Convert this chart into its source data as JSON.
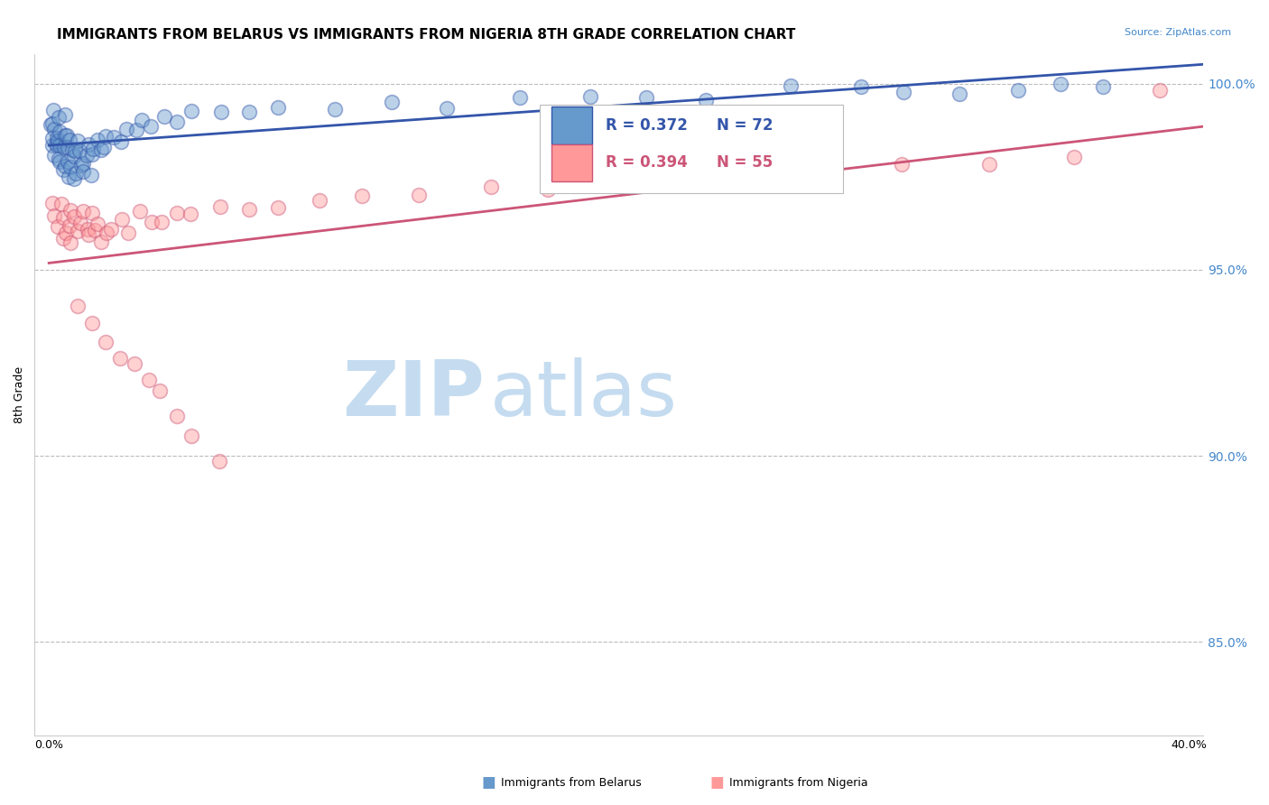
{
  "title": "IMMIGRANTS FROM BELARUS VS IMMIGRANTS FROM NIGERIA 8TH GRADE CORRELATION CHART",
  "source": "Source: ZipAtlas.com",
  "xlabel_bottom": "Immigrants from Belarus",
  "xlabel_bottom2": "Immigrants from Nigeria",
  "ylabel": "8th Grade",
  "xlim": [
    -0.005,
    0.405
  ],
  "ylim": [
    0.825,
    1.008
  ],
  "yticks": [
    0.85,
    0.9,
    0.95,
    1.0
  ],
  "yticklabels": [
    "85.0%",
    "90.0%",
    "95.0%",
    "100.0%"
  ],
  "legend_r_belarus": "R = 0.372",
  "legend_n_belarus": "N = 72",
  "legend_r_nigeria": "R = 0.394",
  "legend_n_nigeria": "N = 55",
  "color_belarus": "#6699CC",
  "color_nigeria": "#FF9999",
  "color_line_belarus": "#3355AA",
  "color_line_nigeria": "#CC5577",
  "tick_color": "#4488CC",
  "watermark_zip": "ZIP",
  "watermark_atlas": "atlas",
  "watermark_color": "#C5DCF0",
  "title_fontsize": 11,
  "axis_label_fontsize": 9,
  "tick_fontsize": 9,
  "belarus_x": [
    0.001,
    0.001,
    0.001,
    0.002,
    0.002,
    0.002,
    0.002,
    0.002,
    0.003,
    0.003,
    0.003,
    0.003,
    0.003,
    0.004,
    0.004,
    0.004,
    0.005,
    0.005,
    0.005,
    0.005,
    0.006,
    0.006,
    0.006,
    0.007,
    0.007,
    0.007,
    0.008,
    0.008,
    0.009,
    0.009,
    0.01,
    0.01,
    0.01,
    0.011,
    0.011,
    0.012,
    0.012,
    0.013,
    0.014,
    0.015,
    0.015,
    0.016,
    0.017,
    0.018,
    0.019,
    0.02,
    0.022,
    0.025,
    0.027,
    0.03,
    0.033,
    0.036,
    0.04,
    0.045,
    0.05,
    0.06,
    0.07,
    0.08,
    0.1,
    0.12,
    0.14,
    0.165,
    0.19,
    0.21,
    0.23,
    0.26,
    0.285,
    0.3,
    0.32,
    0.34,
    0.355,
    0.37
  ],
  "belarus_y": [
    0.988,
    0.99,
    0.985,
    0.992,
    0.988,
    0.984,
    0.986,
    0.982,
    0.99,
    0.986,
    0.982,
    0.984,
    0.98,
    0.988,
    0.984,
    0.98,
    0.99,
    0.986,
    0.982,
    0.978,
    0.986,
    0.982,
    0.978,
    0.984,
    0.98,
    0.976,
    0.982,
    0.978,
    0.98,
    0.976,
    0.984,
    0.98,
    0.976,
    0.982,
    0.978,
    0.98,
    0.976,
    0.982,
    0.984,
    0.98,
    0.976,
    0.982,
    0.984,
    0.982,
    0.984,
    0.986,
    0.984,
    0.986,
    0.988,
    0.988,
    0.99,
    0.988,
    0.99,
    0.99,
    0.992,
    0.992,
    0.992,
    0.994,
    0.994,
    0.996,
    0.994,
    0.996,
    0.996,
    0.996,
    0.996,
    0.998,
    0.998,
    0.998,
    0.998,
    0.998,
    0.999,
    0.999
  ],
  "nigeria_x": [
    0.001,
    0.002,
    0.003,
    0.004,
    0.005,
    0.005,
    0.006,
    0.007,
    0.008,
    0.008,
    0.009,
    0.01,
    0.011,
    0.012,
    0.013,
    0.014,
    0.015,
    0.016,
    0.017,
    0.018,
    0.02,
    0.022,
    0.025,
    0.028,
    0.032,
    0.036,
    0.04,
    0.045,
    0.05,
    0.06,
    0.07,
    0.08,
    0.095,
    0.11,
    0.13,
    0.155,
    0.175,
    0.2,
    0.225,
    0.25,
    0.275,
    0.3,
    0.33,
    0.36,
    0.39,
    0.01,
    0.015,
    0.02,
    0.025,
    0.03,
    0.035,
    0.04,
    0.045,
    0.05,
    0.06
  ],
  "nigeria_y": [
    0.968,
    0.964,
    0.962,
    0.966,
    0.958,
    0.964,
    0.96,
    0.962,
    0.958,
    0.966,
    0.964,
    0.96,
    0.962,
    0.966,
    0.962,
    0.96,
    0.964,
    0.96,
    0.962,
    0.958,
    0.96,
    0.962,
    0.964,
    0.96,
    0.966,
    0.962,
    0.964,
    0.966,
    0.966,
    0.968,
    0.966,
    0.968,
    0.968,
    0.97,
    0.97,
    0.972,
    0.972,
    0.974,
    0.974,
    0.976,
    0.976,
    0.978,
    0.978,
    0.98,
    0.999,
    0.94,
    0.936,
    0.93,
    0.928,
    0.926,
    0.92,
    0.916,
    0.91,
    0.906,
    0.9
  ]
}
